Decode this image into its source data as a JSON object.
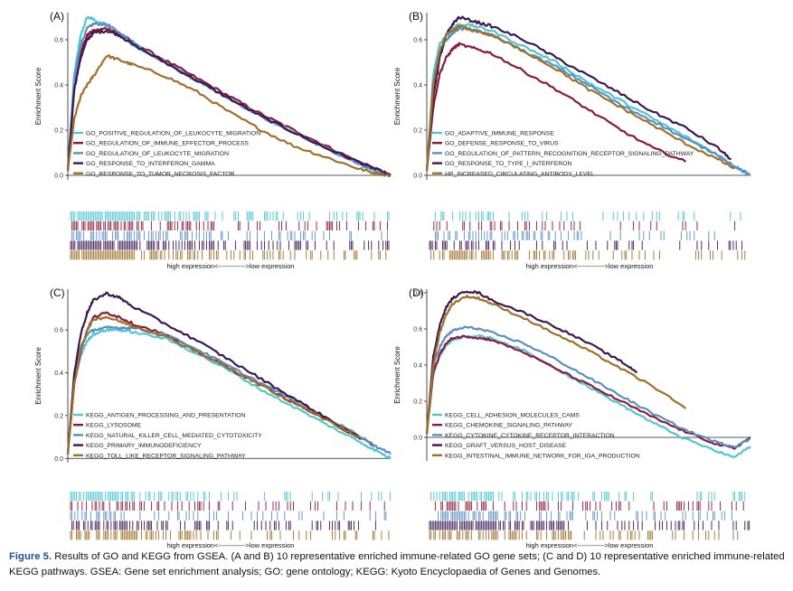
{
  "caption": {
    "label": "Figure 5.",
    "text": "Results of GO and KEGG from GSEA. (A and B) 10 representative enriched immune-related GO gene sets; (C and D) 10 representative enriched immune-related KEGG pathways. GSEA: Gene set enrichment analysis; GO: gene ontology; KEGG: Kyoto Encyclopaedia of Genes and Genomes."
  },
  "colors": {
    "cyan": "#4fc6d3",
    "maroon": "#8c1a3a",
    "steel": "#5b8fc4",
    "purple": "#3b1850",
    "brown": "#a07028"
  },
  "chart_data": [
    {
      "panel": "(A)",
      "type": "line",
      "ylabel": "Enrichment Score",
      "xlabel": "high expression<------------>low expression",
      "ylim": [
        -0.02,
        0.72
      ],
      "yticks": [
        "0.0",
        "0.2",
        "0.4",
        "0.6"
      ],
      "yticks_values": [
        0,
        0.2,
        0.4,
        0.6
      ],
      "rank_range": [
        0,
        100
      ],
      "series": [
        {
          "name": "GO_POSITIVE_REGULATION_OF_LEUKOCYTE_MIGRATION",
          "color": "#4fc6d3",
          "x": [
            0,
            2,
            4,
            6,
            8,
            12,
            16,
            20,
            30,
            40,
            50,
            60,
            70,
            80,
            90,
            95,
            100
          ],
          "y": [
            0.02,
            0.45,
            0.62,
            0.7,
            0.69,
            0.66,
            0.62,
            0.58,
            0.5,
            0.42,
            0.34,
            0.26,
            0.19,
            0.12,
            0.05,
            0.02,
            0.0
          ]
        },
        {
          "name": "GO_REGULATION_OF_IMMUNE_EFFECTOR_PROCESS",
          "color": "#8c1a3a",
          "x": [
            0,
            2,
            4,
            6,
            8,
            12,
            16,
            20,
            30,
            40,
            50,
            60,
            70,
            80,
            90,
            95,
            100
          ],
          "y": [
            0.02,
            0.4,
            0.55,
            0.62,
            0.64,
            0.65,
            0.63,
            0.59,
            0.51,
            0.43,
            0.35,
            0.27,
            0.2,
            0.13,
            0.06,
            0.03,
            0.0
          ]
        },
        {
          "name": "GO_REGULATION_OF_LEUKOCYTE_MIGRATION",
          "color": "#5b8fc4",
          "x": [
            0,
            2,
            4,
            6,
            8,
            12,
            16,
            20,
            30,
            40,
            50,
            60,
            70,
            80,
            90,
            95,
            100
          ],
          "y": [
            0.02,
            0.42,
            0.58,
            0.65,
            0.67,
            0.67,
            0.63,
            0.59,
            0.5,
            0.42,
            0.34,
            0.26,
            0.19,
            0.12,
            0.05,
            0.02,
            0.0
          ]
        },
        {
          "name": "GO_RESPONSE_TO_INTERFERON_GAMMA",
          "color": "#3b1850",
          "x": [
            0,
            2,
            4,
            6,
            8,
            12,
            16,
            20,
            30,
            40,
            50,
            60,
            70,
            80,
            90,
            95,
            100
          ],
          "y": [
            0.02,
            0.38,
            0.52,
            0.6,
            0.63,
            0.64,
            0.62,
            0.58,
            0.5,
            0.42,
            0.34,
            0.26,
            0.19,
            0.12,
            0.06,
            0.03,
            0.0
          ]
        },
        {
          "name": "GO_RESPONSE_TO_TUMOR_NECROSIS_FACTOR",
          "color": "#a07028",
          "x": [
            0,
            2,
            4,
            6,
            8,
            12,
            16,
            20,
            30,
            40,
            50,
            60,
            70,
            80,
            90,
            95,
            100
          ],
          "y": [
            0.02,
            0.25,
            0.35,
            0.4,
            0.44,
            0.53,
            0.51,
            0.49,
            0.44,
            0.37,
            0.28,
            0.2,
            0.13,
            0.08,
            0.03,
            0.01,
            0.0
          ]
        }
      ]
    },
    {
      "panel": "(B)",
      "type": "line",
      "ylabel": "Enrichment Score",
      "xlabel": "high expression<------------>low expression",
      "ylim": [
        -0.02,
        0.72
      ],
      "yticks": [
        "0.0",
        "0.2",
        "0.4",
        "0.6"
      ],
      "yticks_values": [
        0,
        0.2,
        0.4,
        0.6
      ],
      "rank_range": [
        0,
        100
      ],
      "series": [
        {
          "name": "GO_ADAPTIVE_IMMUNE_RESPONSE",
          "color": "#4fc6d3",
          "x": [
            0,
            2,
            4,
            6,
            8,
            10,
            15,
            20,
            30,
            40,
            50,
            60,
            70,
            80,
            90,
            95,
            100
          ],
          "y": [
            0.02,
            0.45,
            0.58,
            0.62,
            0.65,
            0.67,
            0.66,
            0.64,
            0.57,
            0.5,
            0.41,
            0.33,
            0.25,
            0.17,
            0.09,
            0.04,
            0.0
          ]
        },
        {
          "name": "GO_DEFENSE_RESPONSE_TO_VIRUS",
          "color": "#8c1a3a",
          "x": [
            0,
            2,
            4,
            6,
            8,
            10,
            15,
            20,
            30,
            40,
            50,
            60,
            70,
            80
          ],
          "y": [
            0.02,
            0.3,
            0.45,
            0.52,
            0.56,
            0.58,
            0.56,
            0.54,
            0.46,
            0.38,
            0.29,
            0.2,
            0.12,
            0.06
          ]
        },
        {
          "name": "GO_REGULATION_OF_PATTERN_RECOGNITION_RECEPTOR_SIGNALING_PATHWAY",
          "color": "#5b8fc4",
          "x": [
            0,
            2,
            4,
            6,
            8,
            10,
            15,
            20,
            30,
            40,
            50,
            60,
            70,
            80,
            90,
            95,
            100
          ],
          "y": [
            0.02,
            0.4,
            0.55,
            0.6,
            0.63,
            0.65,
            0.64,
            0.62,
            0.55,
            0.48,
            0.4,
            0.31,
            0.24,
            0.16,
            0.09,
            0.04,
            0.0
          ]
        },
        {
          "name": "GO_RESPONSE_TO_TYPE_I_INTERFERON",
          "color": "#3b1850",
          "x": [
            0,
            2,
            4,
            6,
            8,
            10,
            15,
            20,
            30,
            40,
            50,
            60,
            70,
            80,
            90,
            94
          ],
          "y": [
            0.02,
            0.35,
            0.52,
            0.62,
            0.67,
            0.7,
            0.68,
            0.66,
            0.6,
            0.52,
            0.44,
            0.36,
            0.28,
            0.21,
            0.12,
            0.07
          ]
        },
        {
          "name": "HP_INCREASED_CIRCULATING_ANTIBODY_LEVEL",
          "color": "#a07028",
          "x": [
            0,
            2,
            4,
            6,
            8,
            10,
            15,
            20,
            30,
            40,
            50,
            60,
            70,
            80,
            90,
            95
          ],
          "y": [
            0.02,
            0.4,
            0.55,
            0.62,
            0.64,
            0.66,
            0.64,
            0.62,
            0.55,
            0.47,
            0.38,
            0.3,
            0.22,
            0.14,
            0.07,
            0.03
          ]
        }
      ]
    },
    {
      "panel": "(C)",
      "type": "line",
      "ylabel": "Enrichment Score",
      "xlabel": "high expression<------------>low expression",
      "ylim": [
        -0.02,
        0.79
      ],
      "yticks": [
        "0.0",
        "0.2",
        "0.4",
        "0.6"
      ],
      "yticks_values": [
        0,
        0.2,
        0.4,
        0.6
      ],
      "rank_range": [
        0,
        100
      ],
      "series": [
        {
          "name": "KEGG_ANTIGEN_PROCESSING_AND_PRESENTATION",
          "color": "#4fc6d3",
          "x": [
            0,
            2,
            4,
            6,
            8,
            12,
            16,
            20,
            30,
            40,
            50,
            60,
            70,
            80,
            90,
            95,
            100
          ],
          "y": [
            0.02,
            0.35,
            0.48,
            0.55,
            0.58,
            0.6,
            0.6,
            0.59,
            0.56,
            0.49,
            0.41,
            0.32,
            0.24,
            0.16,
            0.08,
            0.04,
            0.0
          ]
        },
        {
          "name": "KEGG_LYSOSOME",
          "color": "#8c1a3a",
          "x": [
            0,
            2,
            4,
            6,
            8,
            12,
            16,
            20,
            30,
            40,
            50,
            60,
            70,
            80,
            90,
            95
          ],
          "y": [
            0.02,
            0.35,
            0.5,
            0.6,
            0.66,
            0.68,
            0.66,
            0.63,
            0.58,
            0.5,
            0.42,
            0.34,
            0.26,
            0.18,
            0.1,
            0.06
          ]
        },
        {
          "name": "KEGG_NATURAL_KILLER_CELL_MEDIATED_CYTOTOXICITY",
          "color": "#5b8fc4",
          "x": [
            0,
            2,
            4,
            6,
            8,
            12,
            16,
            20,
            30,
            40,
            50,
            60,
            70,
            80,
            90,
            95,
            100
          ],
          "y": [
            0.02,
            0.38,
            0.52,
            0.58,
            0.6,
            0.61,
            0.61,
            0.61,
            0.58,
            0.51,
            0.43,
            0.35,
            0.27,
            0.19,
            0.11,
            0.06,
            0.02
          ]
        },
        {
          "name": "KEGG_PRIMARY_IMMUNODEFICIENCY",
          "color": "#3b1850",
          "x": [
            0,
            2,
            4,
            6,
            8,
            12,
            16,
            20,
            30,
            40,
            50,
            60,
            70,
            80,
            90
          ],
          "y": [
            0.02,
            0.4,
            0.58,
            0.68,
            0.74,
            0.77,
            0.75,
            0.71,
            0.63,
            0.55,
            0.46,
            0.37,
            0.28,
            0.19,
            0.1
          ]
        },
        {
          "name": "KEGG_TOLL_LIKE_RECEPTOR_SIGNALING_PATHWAY",
          "color": "#a07028",
          "x": [
            0,
            2,
            4,
            6,
            8,
            12,
            16,
            20,
            30,
            40,
            50,
            60,
            70,
            80,
            90
          ],
          "y": [
            0.02,
            0.35,
            0.5,
            0.6,
            0.65,
            0.66,
            0.64,
            0.62,
            0.57,
            0.5,
            0.42,
            0.34,
            0.26,
            0.18,
            0.1
          ]
        }
      ]
    },
    {
      "panel": "(D)",
      "type": "line",
      "ylabel": "Enrichment Score",
      "xlabel": "high expression<------------>low expression",
      "ylim": [
        -0.13,
        0.82
      ],
      "yticks": [
        "0.0",
        "0.2",
        "0.4",
        "0.6",
        "0.8"
      ],
      "yticks_values": [
        0,
        0.2,
        0.4,
        0.6,
        0.8
      ],
      "rank_range": [
        0,
        100
      ],
      "series": [
        {
          "name": "KEGG_CELL_ADHESION_MOLECULES_CAMS",
          "color": "#4fc6d3",
          "x": [
            0,
            2,
            4,
            6,
            8,
            12,
            16,
            20,
            30,
            40,
            50,
            60,
            70,
            80,
            90,
            95,
            100
          ],
          "y": [
            0.02,
            0.35,
            0.45,
            0.51,
            0.54,
            0.56,
            0.56,
            0.55,
            0.48,
            0.38,
            0.28,
            0.18,
            0.08,
            -0.01,
            -0.08,
            -0.11,
            -0.05
          ]
        },
        {
          "name": "KEGG_CHEMOKINE_SIGNALING_PATHWAY",
          "color": "#8c1a3a",
          "x": [
            0,
            2,
            4,
            6,
            8,
            12,
            16,
            20,
            30,
            40,
            50,
            60,
            70,
            80,
            90,
            95,
            100
          ],
          "y": [
            0.02,
            0.36,
            0.46,
            0.52,
            0.55,
            0.56,
            0.55,
            0.54,
            0.47,
            0.38,
            0.29,
            0.2,
            0.11,
            0.03,
            -0.04,
            -0.06,
            0.0
          ]
        },
        {
          "name": "KEGG_CYTOKINE_CYTOKINE_RECEPTOR_INTERACTION",
          "color": "#5b8fc4",
          "x": [
            0,
            2,
            4,
            6,
            8,
            12,
            16,
            20,
            30,
            40,
            50,
            60,
            70,
            80,
            90,
            95,
            100
          ],
          "y": [
            0.02,
            0.4,
            0.5,
            0.56,
            0.59,
            0.61,
            0.6,
            0.58,
            0.52,
            0.43,
            0.33,
            0.23,
            0.13,
            0.04,
            -0.03,
            -0.05,
            -0.01
          ]
        },
        {
          "name": "KEGG_GRAFT_VERSUS_HOST_DISEASE",
          "color": "#3b1850",
          "x": [
            0,
            2,
            4,
            6,
            8,
            12,
            16,
            20,
            30,
            40,
            50,
            60,
            65
          ],
          "y": [
            0.02,
            0.45,
            0.62,
            0.72,
            0.77,
            0.81,
            0.8,
            0.76,
            0.69,
            0.61,
            0.52,
            0.42,
            0.36
          ]
        },
        {
          "name": "KEGG_INTESTINAL_IMMUNE_NETWORK_FOR_IGA_PRODUCTION",
          "color": "#a07028",
          "x": [
            0,
            2,
            4,
            6,
            8,
            12,
            16,
            20,
            30,
            40,
            50,
            60,
            70,
            80
          ],
          "y": [
            0.02,
            0.4,
            0.58,
            0.68,
            0.74,
            0.78,
            0.77,
            0.74,
            0.66,
            0.57,
            0.48,
            0.38,
            0.28,
            0.16
          ]
        }
      ]
    }
  ]
}
